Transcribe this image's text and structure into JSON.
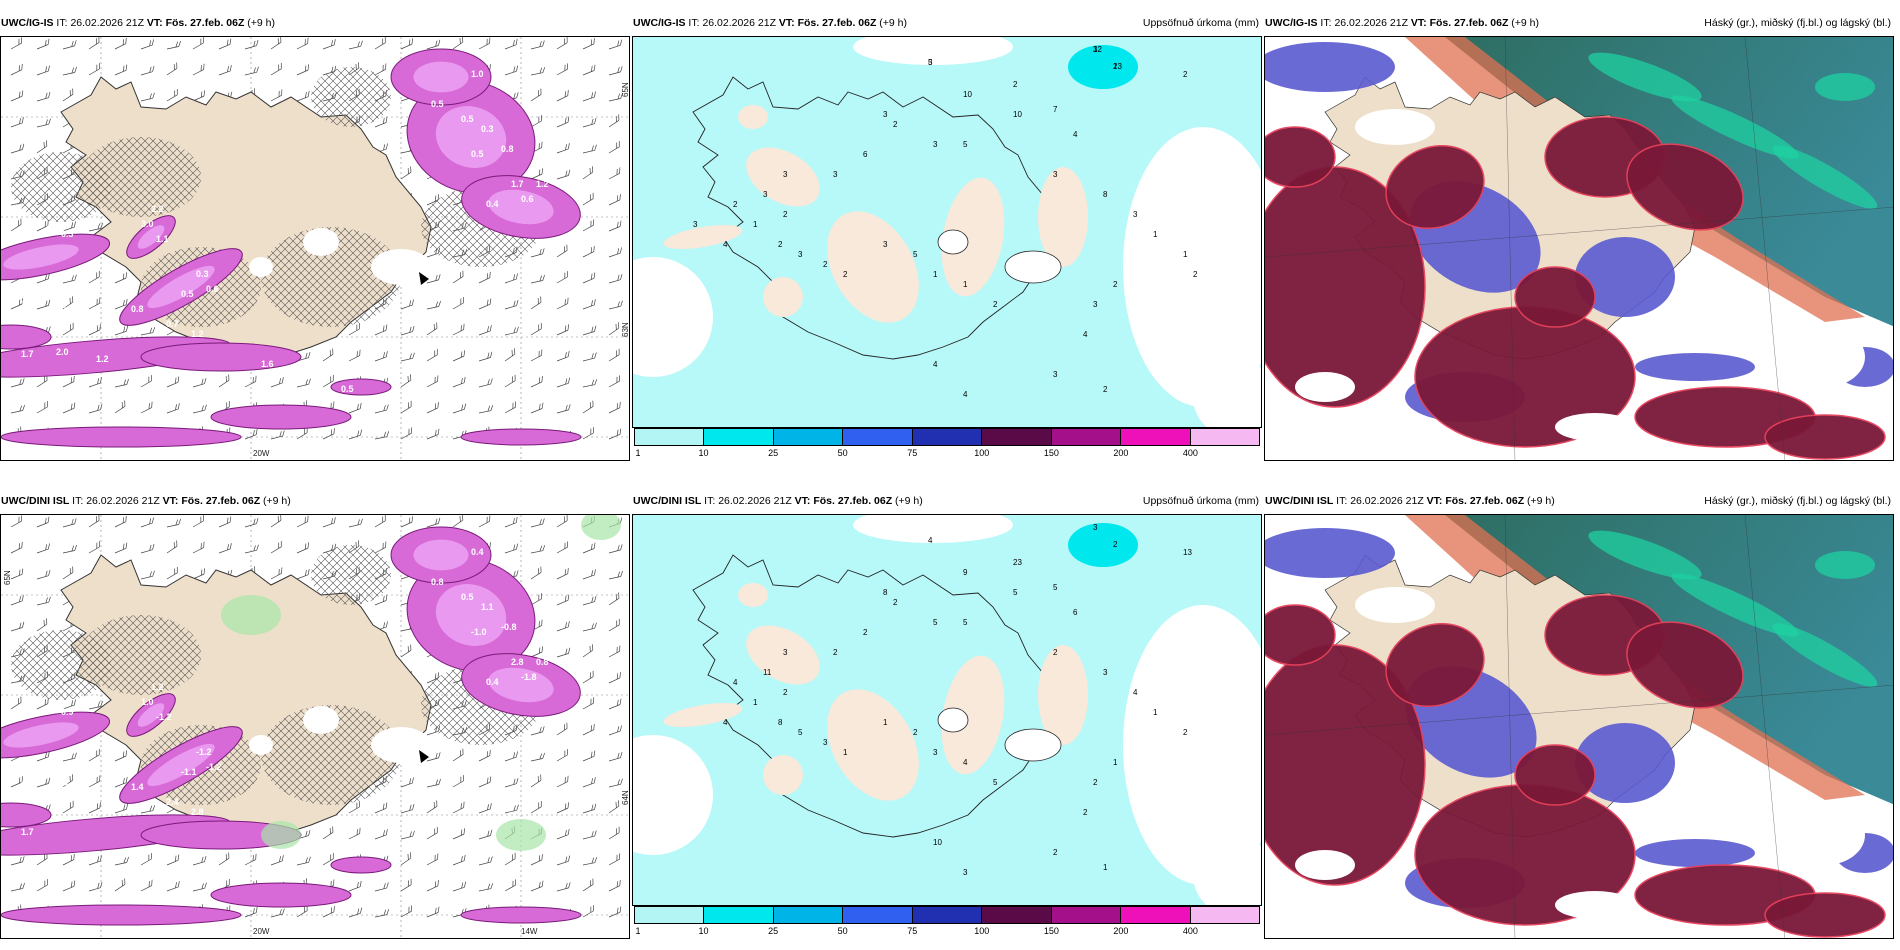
{
  "panels": [
    {
      "id": "p1",
      "model": "UWC/IG-IS",
      "it_label": "IT:",
      "it": "26.02.2026 21Z",
      "vt_label": "VT:",
      "vt": "Fös. 27.feb. 06Z",
      "lead": "(+9 h)",
      "param": "",
      "lon_label": "20W",
      "lat_label": "65N",
      "lat_label2": "63N"
    },
    {
      "id": "p2",
      "model": "UWC/IG-IS",
      "it_label": "IT:",
      "it": "26.02.2026 21Z",
      "vt_label": "VT:",
      "vt": "Fös. 27.feb. 06Z",
      "lead": "(+9 h)",
      "param": "Uppsöfnuð úrkoma (mm)"
    },
    {
      "id": "p3",
      "model": "UWC/IG-IS",
      "it_label": "IT:",
      "it": "26.02.2026 21Z",
      "vt_label": "VT:",
      "vt": "Fös. 27.feb. 06Z",
      "lead": "(+9 h)",
      "param": "Háský (gr.), miðský (fj.bl.) og lágský (bl.)"
    },
    {
      "id": "p4",
      "model": "UWC/DINI ISL",
      "it_label": "IT:",
      "it": "26.02.2026 21Z",
      "vt_label": "VT:",
      "vt": "Fös. 27.feb. 06Z",
      "lead": "(+9 h)",
      "param": "",
      "lon_label": "20W",
      "lon_label2": "14W",
      "lat_label": "65N",
      "lat_label2": "64N"
    },
    {
      "id": "p5",
      "model": "UWC/DINI ISL",
      "it_label": "IT:",
      "it": "26.02.2026 21Z",
      "vt_label": "VT:",
      "vt": "Fös. 27.feb. 06Z",
      "lead": "(+9 h)",
      "param": "Uppsöfnuð úrkoma (mm)"
    },
    {
      "id": "p6",
      "model": "UWC/DINI ISL",
      "it_label": "IT:",
      "it": "26.02.2026 21Z",
      "vt_label": "VT:",
      "vt": "Fös. 27.feb. 06Z",
      "lead": "(+9 h)",
      "param": "Háský (gr.), miðský (fj.bl.) og lágský (bl.)"
    }
  ],
  "precip_scale": {
    "labels": [
      "1",
      "10",
      "25",
      "50",
      "75",
      "100",
      "150",
      "200",
      "400"
    ],
    "colors": [
      "#b3f5f5",
      "#00e8ee",
      "#00b4e8",
      "#3060f0",
      "#2030b0",
      "#5a0a46",
      "#a3108a",
      "#ee10b8",
      "#f5b8f0"
    ]
  },
  "precip_numbers_top": [
    "3",
    "12",
    "13",
    "2",
    "2",
    "10",
    "10",
    "7",
    "4",
    "3",
    "2",
    "3",
    "5",
    "6",
    "3",
    "3",
    "3",
    "2",
    "2",
    "1",
    "4",
    "2",
    "3",
    "2",
    "2",
    "3",
    "5",
    "1",
    "1",
    "2",
    "3",
    "8",
    "3",
    "1",
    "1",
    "2",
    "3",
    "4",
    "4",
    "4",
    "3",
    "2",
    "2",
    "3",
    "5",
    "3",
    "2"
  ],
  "precip_numbers_bottom": [
    "4",
    "3",
    "2",
    "13",
    "23",
    "9",
    "5",
    "5",
    "6",
    "8",
    "2",
    "5",
    "5",
    "2",
    "2",
    "3",
    "11",
    "4",
    "2",
    "1",
    "4",
    "8",
    "5",
    "3",
    "1",
    "1",
    "2",
    "3",
    "4",
    "5",
    "2",
    "3",
    "4",
    "1",
    "2",
    "1",
    "2",
    "2",
    "10",
    "3",
    "2",
    "1"
  ],
  "cold_numbers_top": [
    "1.0",
    "0.4",
    "0.5",
    "0.5",
    "0.3",
    "0.5",
    "0.8",
    "1.7",
    "0.6",
    "0.4",
    "1.2",
    "0.6",
    "0.3",
    "2.2",
    "3.0",
    "1.1",
    "0.3",
    "0.5",
    "0.6",
    "1.2",
    "0.5",
    "1.0",
    "0.8",
    "0.7",
    "1.2",
    "1.7",
    "2.0",
    "1.2",
    "1.6",
    "1.6",
    "1.9",
    "0.5",
    "0.3"
  ],
  "cold_numbers_bottom": [
    "0.4",
    "0.3",
    "0.8",
    "0.5",
    "1.1",
    "-1.0",
    "-0.8",
    "2.8",
    "-1.8",
    "0.4",
    "0.8",
    "-1.8",
    "0.9",
    "1.2",
    "1.0",
    "-1.2",
    "-1.2",
    "-1.1",
    "-1.2",
    "-1.6",
    "-1.8",
    "0.6",
    "1.4",
    "2.4",
    "2.8",
    "1.7"
  ]
}
